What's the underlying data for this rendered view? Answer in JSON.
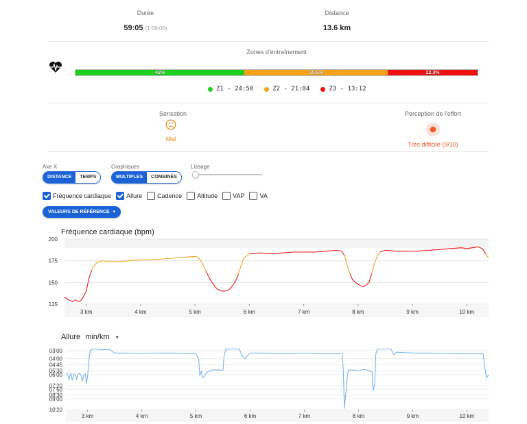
{
  "stats": {
    "duration_label": "Durée",
    "duration_value": "59:05",
    "duration_sub": "(1:00:00)",
    "distance_label": "Distance",
    "distance_value": "13.6 km"
  },
  "zones": {
    "title": "Zones d'entraînement",
    "icon": "heart-rate-icon",
    "segments": [
      {
        "label": "42%",
        "fraction": 0.42,
        "color": "#1fd11f"
      },
      {
        "label": "35.6%",
        "fraction": 0.356,
        "color": "#f5a21a"
      },
      {
        "label": "22.3%",
        "fraction": 0.223,
        "color": "#ee1111"
      }
    ],
    "legend": [
      {
        "label": "Z1 - 24:50",
        "color": "#1fd11f"
      },
      {
        "label": "Z2 - 21:04",
        "color": "#f5a21a"
      },
      {
        "label": "Z3 - 13:12",
        "color": "#ee1111"
      }
    ]
  },
  "feeling": {
    "label": "Sensation",
    "icon": "sad-face-icon",
    "value": "Mal",
    "color": "#f08c14"
  },
  "effort": {
    "label": "Perception de l'effort",
    "icon": "effort-dot-icon",
    "value": "Très difficile (9/10)",
    "color": "#f05a28"
  },
  "controls": {
    "axis_label": "Axe X",
    "axis_options": [
      "DISTANCE",
      "TEMPS"
    ],
    "axis_selected": "DISTANCE",
    "graphs_label": "Graphiques",
    "graphs_options": [
      "MULTIPLES",
      "COMBINÉS"
    ],
    "graphs_selected": "MULTIPLES",
    "smoothing_label": "Lissage",
    "smoothing_level": 0,
    "checkboxes": [
      {
        "label": "Fréquence cardiaque",
        "checked": true
      },
      {
        "label": "Allure",
        "checked": true
      },
      {
        "label": "Cadence",
        "checked": false
      },
      {
        "label": "Altitude",
        "checked": false
      },
      {
        "label": "VAP",
        "checked": false
      },
      {
        "label": "VA",
        "checked": false
      }
    ],
    "ref_button": "VALEURS DE RÉFÉRENCE"
  },
  "accent": "#1a62d6",
  "chart_data": [
    {
      "type": "line",
      "title": "Fréquence cardiaque (bpm)",
      "xlabel": "",
      "ylabel": "",
      "xlim": [
        2.6,
        10.4
      ],
      "ylim": [
        125,
        200
      ],
      "yticks": [
        125,
        150,
        175,
        200
      ],
      "xticks": [
        3,
        4,
        5,
        6,
        7,
        8,
        9,
        10
      ],
      "xtick_labels": [
        "3 km",
        "4 km",
        "5 km",
        "6 km",
        "7 km",
        "8 km",
        "9 km",
        "10 km"
      ],
      "grid": true,
      "colors": {
        "z1": "#1fd11f",
        "z2": "#f5a21a",
        "z3": "#ee1111"
      },
      "series": [
        {
          "x": [
            2.6,
            2.65,
            2.7,
            2.75,
            2.8,
            2.85,
            2.9,
            2.95,
            3.0,
            3.05,
            3.1,
            3.15,
            3.2,
            3.3,
            3.4,
            3.6,
            3.8,
            4.0,
            4.2,
            4.4,
            4.6,
            4.8,
            5.0,
            5.05,
            5.1,
            5.15,
            5.2,
            5.25,
            5.3,
            5.35,
            5.4,
            5.45,
            5.5,
            5.55,
            5.6,
            5.65,
            5.7,
            5.75,
            5.8,
            5.85,
            5.9,
            6.0,
            6.2,
            6.4,
            6.6,
            6.8,
            7.0,
            7.2,
            7.4,
            7.6,
            7.7,
            7.75,
            7.8,
            7.85,
            7.9,
            7.95,
            8.0,
            8.05,
            8.1,
            8.15,
            8.2,
            8.25,
            8.3,
            8.35,
            8.4,
            8.5,
            8.7,
            8.9,
            9.1,
            9.3,
            9.5,
            9.7,
            9.9,
            10.0,
            10.1,
            10.2,
            10.25,
            10.3,
            10.35,
            10.4
          ],
          "y": [
            133,
            131,
            129,
            128,
            130,
            128,
            129,
            134,
            140,
            155,
            164,
            170,
            173,
            175,
            174,
            174,
            175,
            176,
            176,
            177,
            178,
            179,
            180,
            179,
            176,
            170,
            163,
            157,
            151,
            147,
            143,
            141,
            140,
            140,
            141,
            143,
            147,
            152,
            160,
            170,
            178,
            183,
            184,
            183,
            184,
            185,
            185,
            185,
            186,
            187,
            186,
            181,
            170,
            160,
            153,
            150,
            148,
            146,
            145,
            147,
            150,
            160,
            172,
            180,
            185,
            187,
            186,
            186,
            186,
            187,
            188,
            189,
            190,
            189,
            190,
            191,
            190,
            188,
            183,
            178
          ]
        }
      ]
    },
    {
      "type": "line",
      "title": "Allure",
      "unit": "min/km",
      "xlabel": "",
      "ylabel": "",
      "xlim": [
        2.6,
        10.4
      ],
      "ylim": [
        2.5,
        10.33
      ],
      "ytick_values": [
        3.0,
        4.0,
        4.75,
        5.5,
        6.0,
        7.333,
        7.833,
        8.5,
        9.0,
        10.333
      ],
      "ytick_labels": [
        "03'00",
        "04'00",
        "04'45",
        "05'30",
        "06'00",
        "07'20",
        "07'50",
        "08'30",
        "09'00",
        "10'20"
      ],
      "xticks": [
        3,
        4,
        5,
        6,
        7,
        8,
        9,
        10
      ],
      "xtick_labels": [
        "3 km",
        "4 km",
        "5 km",
        "6 km",
        "7 km",
        "8 km",
        "9 km",
        "10 km"
      ],
      "grid": true,
      "line_color": "#78b4ec",
      "series": [
        {
          "x": [
            2.6,
            2.63,
            2.66,
            2.69,
            2.72,
            2.75,
            2.78,
            2.8,
            2.82,
            2.85,
            2.88,
            2.9,
            2.93,
            2.96,
            2.98,
            3.0,
            3.03,
            3.05,
            3.07,
            3.1,
            3.3,
            3.4,
            3.5,
            3.7,
            4.0,
            4.3,
            4.6,
            5.0,
            5.05,
            5.07,
            5.1,
            5.12,
            5.15,
            5.2,
            5.3,
            5.45,
            5.5,
            5.52,
            5.55,
            5.6,
            5.8,
            5.85,
            5.9,
            6.0,
            6.3,
            6.6,
            7.0,
            7.3,
            7.6,
            7.7,
            7.72,
            7.74,
            7.76,
            7.78,
            7.8,
            7.82,
            7.84,
            7.86,
            7.9,
            8.0,
            8.1,
            8.2,
            8.25,
            8.27,
            8.3,
            8.32,
            8.35,
            8.5,
            8.6,
            8.65,
            8.7,
            9.0,
            9.3,
            9.6,
            9.9,
            10.2,
            10.3,
            10.33,
            10.36,
            10.4
          ],
          "y": [
            5.8,
            5.9,
            6.6,
            5.8,
            6.7,
            5.9,
            6.0,
            6.6,
            6.0,
            5.8,
            6.0,
            6.8,
            6.1,
            5.9,
            7.1,
            6.2,
            3.8,
            3.0,
            2.9,
            2.8,
            2.9,
            2.85,
            3.3,
            3.3,
            3.35,
            3.3,
            3.3,
            3.4,
            4.0,
            6.1,
            5.5,
            6.4,
            6.3,
            5.7,
            5.4,
            5.4,
            5.45,
            3.6,
            2.9,
            2.8,
            2.8,
            3.6,
            4.0,
            3.3,
            3.3,
            3.4,
            3.3,
            3.4,
            3.4,
            3.4,
            5.5,
            10.2,
            8.6,
            7.4,
            5.8,
            5.4,
            5.5,
            5.4,
            5.4,
            5.5,
            5.3,
            5.5,
            5.6,
            8.0,
            7.1,
            3.4,
            2.8,
            2.8,
            2.8,
            3.5,
            3.2,
            3.3,
            3.3,
            3.35,
            3.4,
            3.4,
            3.4,
            5.0,
            6.4,
            6.0
          ]
        }
      ]
    }
  ]
}
